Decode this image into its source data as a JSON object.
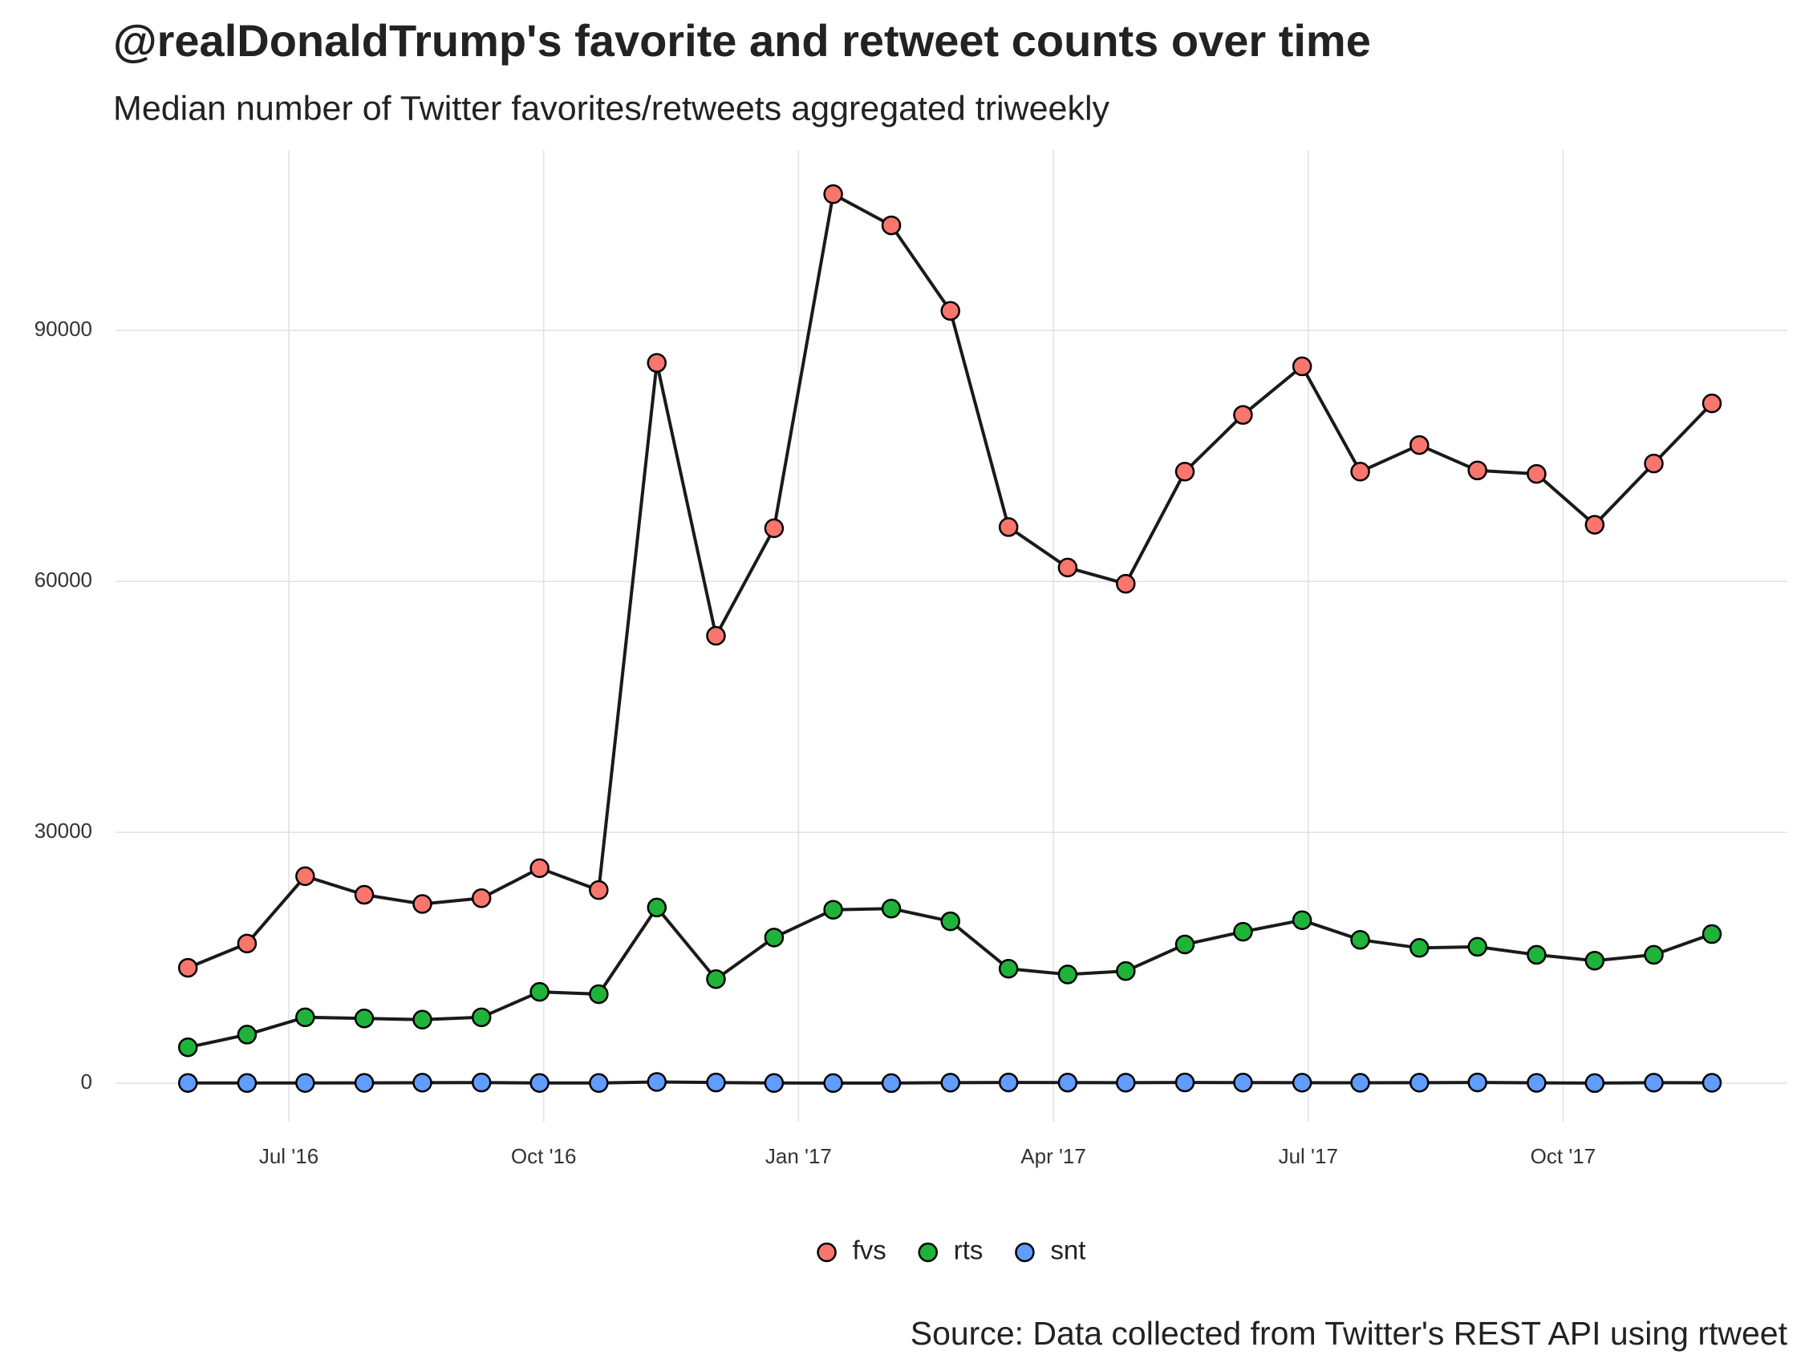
{
  "chart_data": {
    "type": "line",
    "title": "@realDonaldTrump's favorite and retweet counts over time",
    "subtitle": "Median number of Twitter favorites/retweets aggregated triweekly",
    "caption": "Source: Data collected from Twitter's REST API using rtweet",
    "x": [
      2016.401,
      2016.459,
      2016.516,
      2016.574,
      2016.631,
      2016.689,
      2016.746,
      2016.804,
      2016.861,
      2016.919,
      2016.976,
      2017.034,
      2017.091,
      2017.149,
      2017.206,
      2017.264,
      2017.321,
      2017.379,
      2017.436,
      2017.494,
      2017.551,
      2017.609,
      2017.666,
      2017.724,
      2017.781,
      2017.839,
      2017.896
    ],
    "xlim": [
      2016.33,
      2017.97
    ],
    "xticks": [
      {
        "value": 2016.5,
        "label": "Jul '16"
      },
      {
        "value": 2016.75,
        "label": "Oct '16"
      },
      {
        "value": 2017.0,
        "label": "Jan '17"
      },
      {
        "value": 2017.25,
        "label": "Apr '17"
      },
      {
        "value": 2017.5,
        "label": "Jul '17"
      },
      {
        "value": 2017.75,
        "label": "Oct '17"
      }
    ],
    "ylim": [
      -4600,
      111600
    ],
    "yticks": [
      0,
      30000,
      60000,
      90000
    ],
    "grid": true,
    "legend": "bottom",
    "line_color": "#1a1a1a",
    "series": [
      {
        "name": "fvs",
        "color": "#F8766D",
        "values": [
          13800,
          16700,
          24750,
          22530,
          21430,
          22120,
          25710,
          23090,
          86130,
          53500,
          66360,
          106310,
          102580,
          92350,
          66500,
          61660,
          59720,
          73130,
          79910,
          85720,
          73130,
          76310,
          73270,
          72860,
          66780,
          74100,
          81290
        ]
      },
      {
        "name": "rts",
        "color": "#1FB33A",
        "values": [
          4290,
          5810,
          7880,
          7740,
          7600,
          7880,
          10920,
          10650,
          21010,
          12440,
          17420,
          20740,
          20880,
          19360,
          13690,
          13000,
          13410,
          16590,
          18110,
          19490,
          17140,
          16180,
          16310,
          15350,
          14650,
          15350,
          17830
        ]
      },
      {
        "name": "snt",
        "color": "#619CFF",
        "values": [
          30,
          20,
          25,
          40,
          60,
          80,
          30,
          20,
          150,
          80,
          20,
          15,
          10,
          60,
          90,
          70,
          60,
          90,
          70,
          60,
          50,
          60,
          90,
          40,
          10,
          60,
          50
        ]
      }
    ]
  }
}
